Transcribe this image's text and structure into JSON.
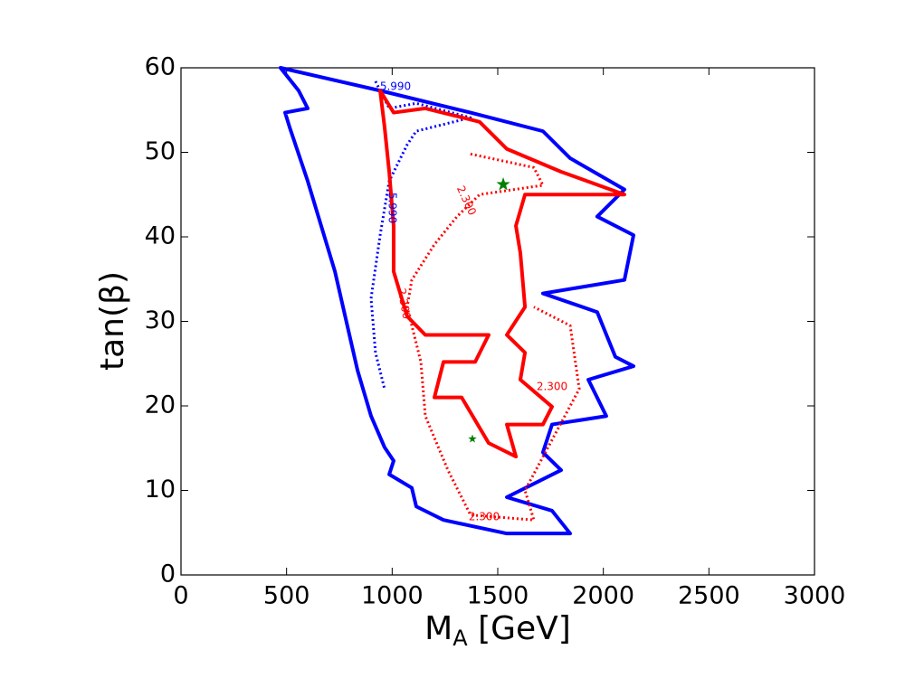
{
  "chart_data": {
    "type": "contour",
    "xlabel": {
      "main": "M",
      "sub": "A",
      "rest": " [GeV]"
    },
    "ylabel": "tan(β)",
    "xlim": [
      0,
      3000
    ],
    "xticks": [
      0,
      500,
      1000,
      1500,
      2000,
      2500,
      3000
    ],
    "ylim": [
      0,
      60
    ],
    "yticks": [
      0,
      10,
      20,
      30,
      40,
      50,
      60
    ],
    "contours": [
      {
        "level": 5.99,
        "value_label": "5.990",
        "color": "#0000ff",
        "style": "solid",
        "x": [
          471,
          943,
          1371,
          1714,
          1843,
          2100,
          1971,
          2143,
          2100,
          1714,
          1971,
          2057,
          2143,
          1929,
          2014,
          1757,
          1714,
          1800,
          1543,
          1757,
          1843,
          1543,
          1243,
          1114,
          1093,
          986,
          1007,
          964,
          900,
          836,
          729,
          600,
          514,
          493,
          600,
          557
        ],
        "y": [
          60,
          57.3,
          54.7,
          52.5,
          49.3,
          45.6,
          42.4,
          40.2,
          34.9,
          33.3,
          31.1,
          25.8,
          24.7,
          23.1,
          18.8,
          17.8,
          14.5,
          12.4,
          9.2,
          7.6,
          4.9,
          4.9,
          6.5,
          8.1,
          10.3,
          11.9,
          13.5,
          15.1,
          18.8,
          24.2,
          35.9,
          46.6,
          53.0,
          54.7,
          55.2,
          57.3
        ]
      },
      {
        "level": 5.99,
        "value_label": "5.990",
        "color": "#0000ff",
        "style": "dotted",
        "x": [
          921,
          986,
          1114,
          1371,
          1114,
          1071,
          986,
          943,
          900,
          921,
          964
        ],
        "y": [
          58.4,
          55.2,
          55.8,
          54.1,
          52.5,
          50.9,
          46.6,
          40.2,
          32.7,
          26.3,
          22.0
        ]
      },
      {
        "level": 2.3,
        "value_label": "2.300",
        "color": "#ff0000",
        "style": "solid",
        "x": [
          943,
          1007,
          1157,
          1414,
          1543,
          1800,
          2100,
          1629,
          1586,
          1607,
          1629,
          1543,
          1629,
          1607,
          1757,
          1714,
          1543,
          1586,
          1457,
          1329,
          1200,
          1243,
          1393,
          1457,
          1157,
          1071,
          1007,
          1007,
          986,
          964
        ],
        "y": [
          57.3,
          54.7,
          55.2,
          53.6,
          50.4,
          47.7,
          45.0,
          45.0,
          41.3,
          38.1,
          31.7,
          28.4,
          26.3,
          23.1,
          19.9,
          17.8,
          17.8,
          14.0,
          15.6,
          21.0,
          21.0,
          25.2,
          25.2,
          28.4,
          28.4,
          30.6,
          35.9,
          41.3,
          47.7,
          53.0
        ]
      },
      {
        "level": 2.3,
        "value_label": "2.300",
        "color": "#ff0000",
        "style": "dotted",
        "x": [
          1371,
          1671,
          1714,
          1414,
          1307,
          1200,
          1093,
          1071,
          1136,
          1157,
          1264,
          1371,
          1671,
          1629,
          1886,
          1843,
          1671
        ],
        "y": [
          49.8,
          48.2,
          46.1,
          45.0,
          42.4,
          39.1,
          34.9,
          31.7,
          25.2,
          18.8,
          12.4,
          7.1,
          6.5,
          10.0,
          22.0,
          29.5,
          31.7
        ]
      }
    ],
    "points": {
      "color": "#008000",
      "x": [
        1526,
        1380
      ],
      "y": [
        46.2,
        16.1
      ]
    }
  }
}
